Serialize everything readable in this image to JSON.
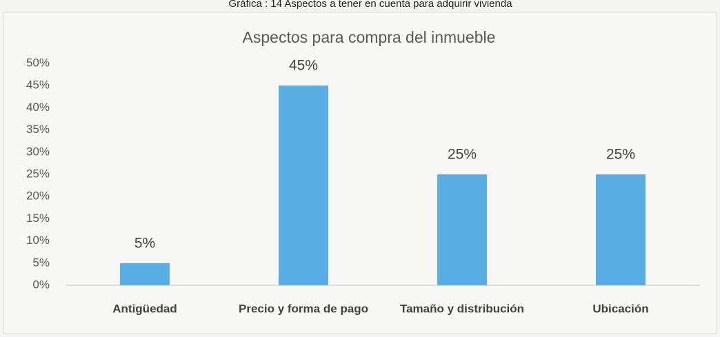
{
  "caption": "Gráfica : 14 Aspectos a tener en cuenta para adquirir vivienda",
  "chart_data": {
    "type": "bar",
    "title": "Aspectos para compra del inmueble",
    "categories": [
      "Antigüedad",
      "Precio y forma de pago",
      "Tamaño y distribución",
      "Ubicación"
    ],
    "values": [
      5,
      45,
      25,
      25
    ],
    "value_labels": [
      "5%",
      "45%",
      "25%",
      "25%"
    ],
    "color": "#5aaee6",
    "ylim": [
      0,
      50
    ],
    "yticks": [
      {
        "value": 0,
        "label": "0%"
      },
      {
        "value": 5,
        "label": "5%"
      },
      {
        "value": 10,
        "label": "10%"
      },
      {
        "value": 15,
        "label": "15%"
      },
      {
        "value": 20,
        "label": "20%"
      },
      {
        "value": 25,
        "label": "25%"
      },
      {
        "value": 30,
        "label": "30%"
      },
      {
        "value": 35,
        "label": "35%"
      },
      {
        "value": 40,
        "label": "40%"
      },
      {
        "value": 45,
        "label": "45%"
      },
      {
        "value": 50,
        "label": "50%"
      }
    ],
    "grid": false
  }
}
